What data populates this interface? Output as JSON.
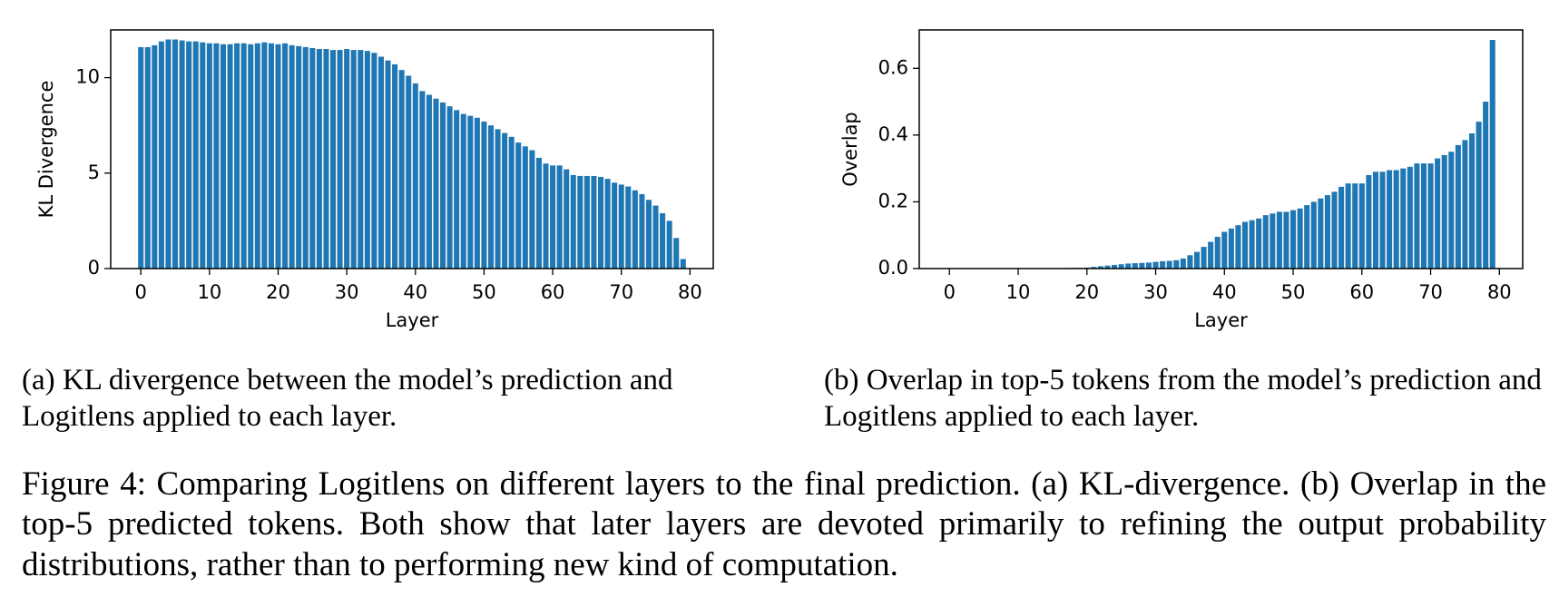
{
  "chart_data": [
    {
      "type": "bar",
      "ylabel": "KL Divergence",
      "xlabel": "Layer",
      "color": "#1f77b4",
      "caption": "(a) KL divergence between the model’s prediction and Logitlens applied to each layer.",
      "x": [
        0,
        1,
        2,
        3,
        4,
        5,
        6,
        7,
        8,
        9,
        10,
        11,
        12,
        13,
        14,
        15,
        16,
        17,
        18,
        19,
        20,
        21,
        22,
        23,
        24,
        25,
        26,
        27,
        28,
        29,
        30,
        31,
        32,
        33,
        34,
        35,
        36,
        37,
        38,
        39,
        40,
        41,
        42,
        43,
        44,
        45,
        46,
        47,
        48,
        49,
        50,
        51,
        52,
        53,
        54,
        55,
        56,
        57,
        58,
        59,
        60,
        61,
        62,
        63,
        64,
        65,
        66,
        67,
        68,
        69,
        70,
        71,
        72,
        73,
        74,
        75,
        76,
        77,
        78,
        79
      ],
      "values": [
        11.6,
        11.6,
        11.7,
        11.9,
        12.0,
        12.0,
        11.95,
        11.9,
        11.9,
        11.85,
        11.8,
        11.8,
        11.75,
        11.75,
        11.8,
        11.8,
        11.75,
        11.8,
        11.85,
        11.8,
        11.75,
        11.8,
        11.7,
        11.65,
        11.6,
        11.55,
        11.5,
        11.5,
        11.45,
        11.45,
        11.5,
        11.45,
        11.45,
        11.4,
        11.3,
        11.1,
        10.9,
        10.7,
        10.4,
        10.1,
        9.7,
        9.3,
        9.1,
        8.9,
        8.7,
        8.5,
        8.3,
        8.1,
        8.0,
        7.9,
        7.7,
        7.5,
        7.3,
        7.1,
        6.9,
        6.6,
        6.4,
        6.2,
        5.8,
        5.5,
        5.4,
        5.4,
        5.2,
        4.9,
        4.85,
        4.85,
        4.85,
        4.8,
        4.7,
        4.5,
        4.4,
        4.3,
        4.1,
        3.9,
        3.6,
        3.3,
        2.9,
        2.5,
        1.6,
        0.5
      ],
      "xlim": [
        -4.39,
        83.39
      ],
      "xticks": [
        0,
        10,
        20,
        30,
        40,
        50,
        60,
        70,
        80
      ],
      "ylim": [
        0,
        12.5
      ],
      "yticks": [
        0,
        5,
        10
      ]
    },
    {
      "type": "bar",
      "ylabel": "Overlap",
      "xlabel": "Layer",
      "color": "#1f77b4",
      "caption": "(b) Overlap in top-5 tokens from the model’s prediction and Logitlens applied to each layer.",
      "x": [
        0,
        1,
        2,
        3,
        4,
        5,
        6,
        7,
        8,
        9,
        10,
        11,
        12,
        13,
        14,
        15,
        16,
        17,
        18,
        19,
        20,
        21,
        22,
        23,
        24,
        25,
        26,
        27,
        28,
        29,
        30,
        31,
        32,
        33,
        34,
        35,
        36,
        37,
        38,
        39,
        40,
        41,
        42,
        43,
        44,
        45,
        46,
        47,
        48,
        49,
        50,
        51,
        52,
        53,
        54,
        55,
        56,
        57,
        58,
        59,
        60,
        61,
        62,
        63,
        64,
        65,
        66,
        67,
        68,
        69,
        70,
        71,
        72,
        73,
        74,
        75,
        76,
        77,
        78,
        79
      ],
      "values": [
        0,
        0,
        0,
        0,
        0,
        0,
        0,
        0,
        0,
        0,
        0,
        0,
        0,
        0,
        0,
        0.001,
        0.001,
        0.001,
        0.002,
        0.002,
        0.003,
        0.005,
        0.007,
        0.009,
        0.011,
        0.013,
        0.015,
        0.016,
        0.017,
        0.018,
        0.02,
        0.022,
        0.023,
        0.025,
        0.03,
        0.04,
        0.05,
        0.065,
        0.08,
        0.095,
        0.11,
        0.12,
        0.13,
        0.14,
        0.145,
        0.15,
        0.16,
        0.165,
        0.17,
        0.17,
        0.175,
        0.18,
        0.19,
        0.2,
        0.21,
        0.22,
        0.23,
        0.245,
        0.255,
        0.255,
        0.255,
        0.28,
        0.29,
        0.29,
        0.295,
        0.295,
        0.3,
        0.305,
        0.315,
        0.315,
        0.315,
        0.33,
        0.34,
        0.35,
        0.37,
        0.385,
        0.405,
        0.44,
        0.5,
        0.685
      ],
      "xlim": [
        -4.39,
        83.39
      ],
      "xticks": [
        0,
        10,
        20,
        30,
        40,
        50,
        60,
        70,
        80
      ],
      "ylim": [
        0,
        0.715
      ],
      "yticks": [
        {
          "value": 0,
          "label": "0.0"
        },
        0.2,
        0.4,
        0.6
      ]
    }
  ],
  "figure_caption": "Figure 4: Comparing Logitlens on different layers to the final prediction. (a) KL-divergence. (b) Overlap in the top-5 predicted tokens. Both show that later layers are devoted primarily to refining the output probability distributions, rather than to performing new kind of computation."
}
